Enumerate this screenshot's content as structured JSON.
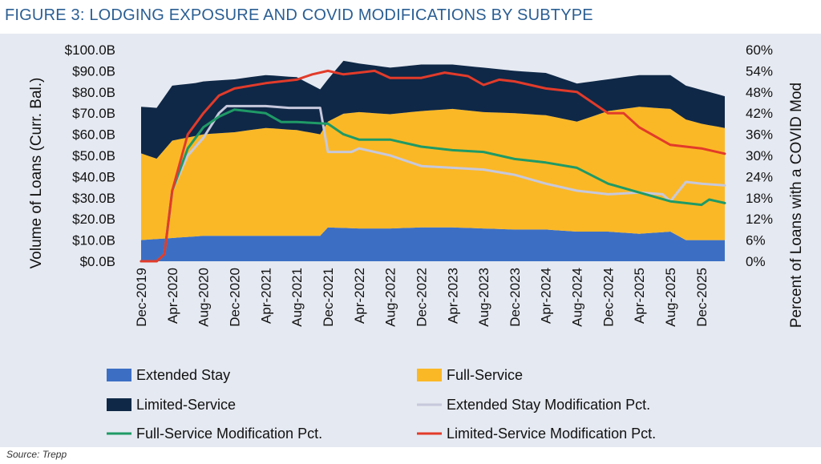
{
  "header": {
    "title": "FIGURE 3: LODGING EXPOSURE AND COVID MODIFICATIONS BY SUBTYPE"
  },
  "footer": {
    "source": "Source: Trepp"
  },
  "colors": {
    "extended_stay": "#3c6fc4",
    "full_service": "#fbb826",
    "limited_service": "#0f2847",
    "ext_mod": "#c6c8dc",
    "full_mod": "#1f9a66",
    "lim_mod": "#e23b2a",
    "panel": "#e5e9f1",
    "title": "#2a5e93"
  },
  "chart_data": {
    "type": "area",
    "title": "FIGURE 3: LODGING EXPOSURE AND COVID MODIFICATIONS BY SUBTYPE",
    "ylabel": "Volume of Loans (Curr. Bal.)",
    "y2label": "Percent of Loans with a COVID Mod",
    "xlabel": "",
    "ylim": [
      0,
      100
    ],
    "y2lim": [
      0,
      60
    ],
    "grid": false,
    "legend_position": "bottom",
    "x_range": [
      "Dec-2019",
      "Mar-2026"
    ],
    "y_tick_labels": [
      "$0.0B",
      "$10.0B",
      "$20.0B",
      "$30.0B",
      "$40.0B",
      "$50.0B",
      "$60.0B",
      "$70.0B",
      "$80.0B",
      "$90.0B",
      "$100.0B"
    ],
    "y2_tick_labels": [
      "0%",
      "6%",
      "12%",
      "18%",
      "24%",
      "30%",
      "36%",
      "42%",
      "48%",
      "54%",
      "60%"
    ],
    "x_tick_labels": [
      "Dec-2019",
      "Apr-2020",
      "Aug-2020",
      "Dec-2020",
      "Apr-2021",
      "Aug-2021",
      "Dec-2021",
      "Apr-2022",
      "Aug-2022",
      "Dec-2022",
      "Apr-2023",
      "Aug-2023",
      "Dec-2023",
      "Apr-2024",
      "Aug-2024",
      "Dec-2024",
      "Apr-2025",
      "Aug-2025",
      "Dec-2025"
    ],
    "stacked_series": [
      {
        "name": "Extended Stay",
        "axis": "left",
        "unit": "$B",
        "points": [
          [
            "Dec-2019",
            10
          ],
          [
            "Apr-2020",
            11
          ],
          [
            "Aug-2020",
            12
          ],
          [
            "Dec-2020",
            12
          ],
          [
            "Apr-2021",
            12
          ],
          [
            "Aug-2021",
            12
          ],
          [
            "Nov-2021",
            12
          ],
          [
            "Dec-2021",
            16
          ],
          [
            "Apr-2022",
            15.5
          ],
          [
            "Aug-2022",
            15.5
          ],
          [
            "Dec-2022",
            16
          ],
          [
            "Apr-2023",
            16
          ],
          [
            "Aug-2023",
            15.5
          ],
          [
            "Dec-2023",
            15
          ],
          [
            "Apr-2024",
            15
          ],
          [
            "Aug-2024",
            14
          ],
          [
            "Dec-2024",
            14
          ],
          [
            "Apr-2025",
            13
          ],
          [
            "Aug-2025",
            14
          ],
          [
            "Oct-2025",
            10
          ],
          [
            "Dec-2025",
            10
          ],
          [
            "Mar-2026",
            10
          ]
        ]
      },
      {
        "name": "Full-Service",
        "axis": "left",
        "unit": "$B",
        "points": [
          [
            "Dec-2019",
            41
          ],
          [
            "Feb-2020",
            38
          ],
          [
            "Apr-2020",
            46
          ],
          [
            "Aug-2020",
            48
          ],
          [
            "Dec-2020",
            49
          ],
          [
            "Apr-2021",
            51
          ],
          [
            "Aug-2021",
            50
          ],
          [
            "Nov-2021",
            48
          ],
          [
            "Dec-2021",
            50
          ],
          [
            "Feb-2022",
            54
          ],
          [
            "Apr-2022",
            55
          ],
          [
            "Aug-2022",
            54
          ],
          [
            "Dec-2022",
            55
          ],
          [
            "Apr-2023",
            56
          ],
          [
            "Aug-2023",
            55
          ],
          [
            "Dec-2023",
            55
          ],
          [
            "Apr-2024",
            54
          ],
          [
            "Aug-2024",
            52
          ],
          [
            "Dec-2024",
            57
          ],
          [
            "Apr-2025",
            60
          ],
          [
            "Aug-2025",
            58
          ],
          [
            "Oct-2025",
            57
          ],
          [
            "Dec-2025",
            55
          ],
          [
            "Mar-2026",
            53
          ]
        ]
      },
      {
        "name": "Limited-Service",
        "axis": "left",
        "unit": "$B",
        "points": [
          [
            "Dec-2019",
            22
          ],
          [
            "Apr-2020",
            26
          ],
          [
            "Jul-2020",
            25
          ],
          [
            "Dec-2020",
            25
          ],
          [
            "Apr-2021",
            25
          ],
          [
            "Aug-2021",
            25
          ],
          [
            "Dec-2021",
            20
          ],
          [
            "Feb-2022",
            25
          ],
          [
            "Apr-2022",
            23
          ],
          [
            "Aug-2022",
            22
          ],
          [
            "Dec-2022",
            22
          ],
          [
            "Apr-2023",
            21
          ],
          [
            "Aug-2023",
            21
          ],
          [
            "Dec-2023",
            20
          ],
          [
            "Apr-2024",
            20
          ],
          [
            "Aug-2024",
            18
          ],
          [
            "Dec-2024",
            15
          ],
          [
            "Apr-2025",
            15
          ],
          [
            "Aug-2025",
            16
          ],
          [
            "Dec-2025",
            16
          ],
          [
            "Mar-2026",
            15
          ]
        ]
      }
    ],
    "line_series": [
      {
        "name": "Extended Stay Modification Pct.",
        "axis": "right",
        "unit": "%",
        "points": [
          [
            "Dec-2019",
            0
          ],
          [
            "Feb-2020",
            0
          ],
          [
            "Mar-2020",
            2
          ],
          [
            "Apr-2020",
            20
          ],
          [
            "Jun-2020",
            30
          ],
          [
            "Aug-2020",
            35
          ],
          [
            "Oct-2020",
            42
          ],
          [
            "Nov-2020",
            44
          ],
          [
            "Dec-2020",
            44
          ],
          [
            "Apr-2021",
            44
          ],
          [
            "Jul-2021",
            43.5
          ],
          [
            "Oct-2021",
            43.5
          ],
          [
            "Nov-2021",
            43.5
          ],
          [
            "Dec-2021",
            31
          ],
          [
            "Mar-2022",
            31
          ],
          [
            "Apr-2022",
            32
          ],
          [
            "Aug-2022",
            30
          ],
          [
            "Dec-2022",
            27
          ],
          [
            "Apr-2023",
            26.5
          ],
          [
            "Aug-2023",
            26
          ],
          [
            "Dec-2023",
            24.5
          ],
          [
            "Apr-2024",
            22
          ],
          [
            "Aug-2024",
            20
          ],
          [
            "Dec-2024",
            19
          ],
          [
            "Apr-2025",
            19.5
          ],
          [
            "Jul-2025",
            19
          ],
          [
            "Aug-2025",
            17
          ],
          [
            "Oct-2025",
            22.5
          ],
          [
            "Dec-2025",
            22
          ],
          [
            "Mar-2026",
            21.5
          ]
        ]
      },
      {
        "name": "Full-Service Modification Pct.",
        "axis": "right",
        "unit": "%",
        "points": [
          [
            "Dec-2019",
            0
          ],
          [
            "Feb-2020",
            0
          ],
          [
            "Mar-2020",
            2
          ],
          [
            "Apr-2020",
            20
          ],
          [
            "Jun-2020",
            32
          ],
          [
            "Aug-2020",
            38
          ],
          [
            "Oct-2020",
            41
          ],
          [
            "Dec-2020",
            43
          ],
          [
            "Apr-2021",
            42
          ],
          [
            "Jun-2021",
            39.5
          ],
          [
            "Aug-2021",
            39.5
          ],
          [
            "Dec-2021",
            39
          ],
          [
            "Feb-2022",
            36
          ],
          [
            "Apr-2022",
            34.5
          ],
          [
            "Aug-2022",
            34.5
          ],
          [
            "Dec-2022",
            32.5
          ],
          [
            "Apr-2023",
            31.5
          ],
          [
            "Aug-2023",
            31
          ],
          [
            "Dec-2023",
            29
          ],
          [
            "Apr-2024",
            28
          ],
          [
            "Aug-2024",
            26.5
          ],
          [
            "Dec-2024",
            22
          ],
          [
            "Apr-2025",
            19.5
          ],
          [
            "Aug-2025",
            17
          ],
          [
            "Dec-2025",
            16
          ],
          [
            "Jan-2026",
            17.5
          ],
          [
            "Mar-2026",
            16.5
          ]
        ]
      },
      {
        "name": "Limited-Service Modification Pct.",
        "axis": "right",
        "unit": "%",
        "points": [
          [
            "Dec-2019",
            0
          ],
          [
            "Feb-2020",
            0
          ],
          [
            "Mar-2020",
            2
          ],
          [
            "Apr-2020",
            20
          ],
          [
            "Jun-2020",
            36
          ],
          [
            "Aug-2020",
            42
          ],
          [
            "Oct-2020",
            47
          ],
          [
            "Dec-2020",
            49
          ],
          [
            "Apr-2021",
            50.5
          ],
          [
            "Aug-2021",
            51.5
          ],
          [
            "Oct-2021",
            53
          ],
          [
            "Dec-2021",
            54
          ],
          [
            "Feb-2022",
            53
          ],
          [
            "Apr-2022",
            53.5
          ],
          [
            "Jun-2022",
            54
          ],
          [
            "Aug-2022",
            52
          ],
          [
            "Dec-2022",
            52
          ],
          [
            "Mar-2023",
            53.5
          ],
          [
            "Jun-2023",
            52.5
          ],
          [
            "Aug-2023",
            50
          ],
          [
            "Oct-2023",
            51.5
          ],
          [
            "Dec-2023",
            51
          ],
          [
            "Apr-2024",
            49
          ],
          [
            "Aug-2024",
            48
          ],
          [
            "Dec-2024",
            42
          ],
          [
            "Feb-2025",
            42
          ],
          [
            "Apr-2025",
            38
          ],
          [
            "Aug-2025",
            33
          ],
          [
            "Dec-2025",
            32
          ],
          [
            "Mar-2026",
            30.5
          ]
        ]
      }
    ],
    "legend": [
      "Extended Stay",
      "Full-Service",
      "Limited-Service",
      "Extended Stay Modification Pct.",
      "Full-Service Modification Pct.",
      "Limited-Service Modification Pct."
    ]
  }
}
